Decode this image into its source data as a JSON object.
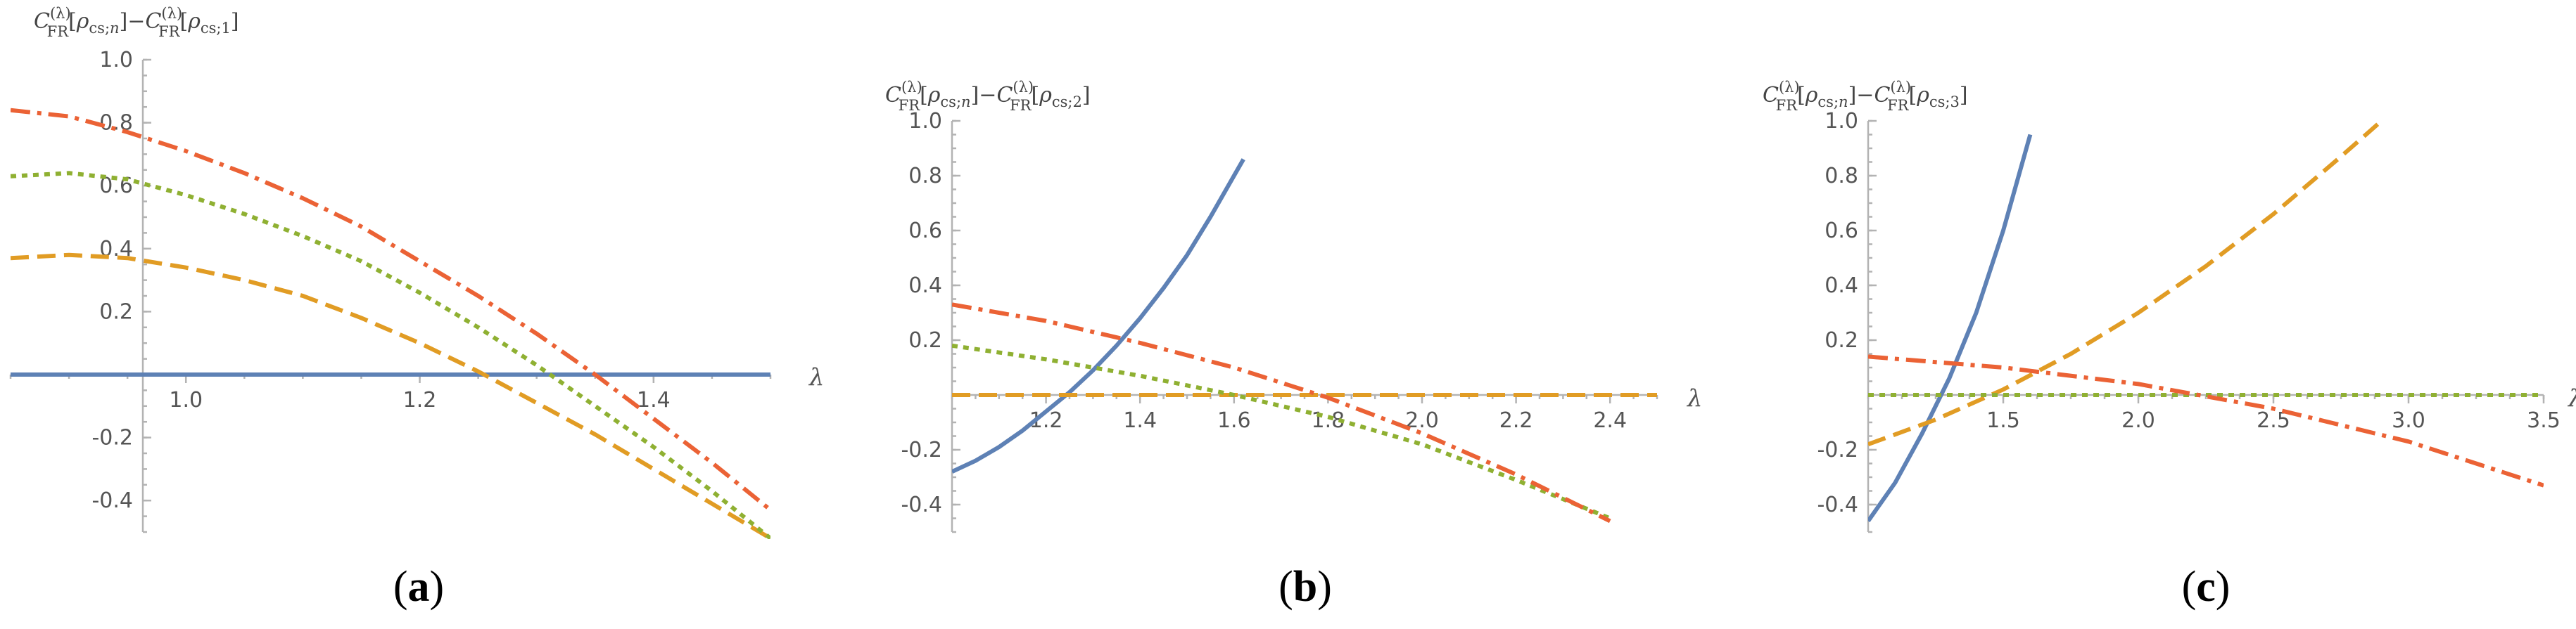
{
  "chart_data": [
    {
      "type": "line",
      "panel_label": "a",
      "ylabel": {
        "C": "C",
        "sub": "FR",
        "sup": "(λ)",
        "arg1": "ρ",
        "arg1sub": "cs;",
        "arg1subit": "n",
        "arg2": "ρ",
        "arg2sub": "cs;1"
      },
      "xlabel": "λ",
      "xlim": [
        0.85,
        1.5
      ],
      "ylim": [
        -0.5,
        1.0
      ],
      "xticks": [
        "1.0",
        "1.2",
        "1.4"
      ],
      "yticks": [
        "-0.4",
        "-0.2",
        "0.2",
        "0.4",
        "0.6",
        "0.8",
        "1.0"
      ],
      "series": [
        {
          "color": "#5e81b5",
          "dash": "solid",
          "x": [
            0.85,
            1.5
          ],
          "y": [
            0.0,
            0.0
          ]
        },
        {
          "color": "#e19c24",
          "dash": "dashed",
          "x": [
            0.85,
            0.9,
            0.95,
            1.0,
            1.05,
            1.1,
            1.15,
            1.2,
            1.25,
            1.3,
            1.35,
            1.4,
            1.45,
            1.5
          ],
          "y": [
            0.37,
            0.38,
            0.37,
            0.34,
            0.3,
            0.25,
            0.18,
            0.1,
            0.01,
            -0.09,
            -0.19,
            -0.3,
            -0.41,
            -0.52
          ]
        },
        {
          "color": "#8fb032",
          "dash": "dotted",
          "x": [
            0.85,
            0.9,
            0.95,
            1.0,
            1.05,
            1.1,
            1.15,
            1.2,
            1.25,
            1.3,
            1.35,
            1.4,
            1.45,
            1.5
          ],
          "y": [
            0.63,
            0.64,
            0.62,
            0.57,
            0.51,
            0.44,
            0.36,
            0.26,
            0.15,
            0.03,
            -0.1,
            -0.23,
            -0.37,
            -0.52
          ]
        },
        {
          "color": "#eb6235",
          "dash": "dashdot",
          "x": [
            0.85,
            0.9,
            0.95,
            1.0,
            1.05,
            1.1,
            1.15,
            1.2,
            1.25,
            1.3,
            1.35,
            1.4,
            1.45,
            1.5
          ],
          "y": [
            0.84,
            0.82,
            0.77,
            0.71,
            0.64,
            0.56,
            0.47,
            0.36,
            0.25,
            0.13,
            0.0,
            -0.14,
            -0.28,
            -0.43
          ]
        }
      ]
    },
    {
      "type": "line",
      "panel_label": "b",
      "ylabel": {
        "C": "C",
        "sub": "FR",
        "sup": "(λ)",
        "arg1": "ρ",
        "arg1sub": "cs;",
        "arg1subit": "n",
        "arg2": "ρ",
        "arg2sub": "cs;2"
      },
      "xlabel": "λ",
      "xlim": [
        1.0,
        2.5
      ],
      "ylim": [
        -0.5,
        1.0
      ],
      "xticks": [
        "1.2",
        "1.4",
        "1.6",
        "1.8",
        "2.0",
        "2.2",
        "2.4"
      ],
      "yticks": [
        "-0.4",
        "-0.2",
        "0.2",
        "0.4",
        "0.6",
        "0.8",
        "1.0"
      ],
      "series": [
        {
          "color": "#5e81b5",
          "dash": "solid",
          "x": [
            1.0,
            1.05,
            1.1,
            1.15,
            1.2,
            1.25,
            1.3,
            1.35,
            1.4,
            1.45,
            1.5,
            1.55,
            1.6,
            1.62
          ],
          "y": [
            -0.28,
            -0.24,
            -0.19,
            -0.13,
            -0.06,
            0.01,
            0.09,
            0.18,
            0.28,
            0.39,
            0.51,
            0.65,
            0.8,
            0.86
          ]
        },
        {
          "color": "#e19c24",
          "dash": "dashed",
          "x": [
            1.0,
            2.5
          ],
          "y": [
            0.0,
            0.0
          ]
        },
        {
          "color": "#8fb032",
          "dash": "dotted",
          "x": [
            1.0,
            1.2,
            1.4,
            1.6,
            1.8,
            2.0,
            2.2,
            2.4
          ],
          "y": [
            0.18,
            0.13,
            0.07,
            0.0,
            -0.08,
            -0.18,
            -0.31,
            -0.45
          ]
        },
        {
          "color": "#eb6235",
          "dash": "dashdot",
          "x": [
            1.0,
            1.2,
            1.4,
            1.6,
            1.8,
            2.0,
            2.2,
            2.4
          ],
          "y": [
            0.33,
            0.27,
            0.19,
            0.1,
            -0.01,
            -0.14,
            -0.29,
            -0.46
          ]
        }
      ]
    },
    {
      "type": "line",
      "panel_label": "c",
      "ylabel": {
        "C": "C",
        "sub": "FR",
        "sup": "(λ)",
        "arg1": "ρ",
        "arg1sub": "cs;",
        "arg1subit": "n",
        "arg2": "ρ",
        "arg2sub": "cs;3"
      },
      "xlabel": "λ",
      "xlim": [
        1.0,
        3.5
      ],
      "ylim": [
        -0.5,
        1.0
      ],
      "xticks": [
        "1.5",
        "2.0",
        "2.5",
        "3.0",
        "3.5"
      ],
      "yticks": [
        "-0.4",
        "-0.2",
        "0.2",
        "0.4",
        "0.6",
        "0.8",
        "1.0"
      ],
      "series": [
        {
          "color": "#5e81b5",
          "dash": "solid",
          "x": [
            1.0,
            1.1,
            1.2,
            1.3,
            1.4,
            1.5,
            1.6
          ],
          "y": [
            -0.46,
            -0.32,
            -0.14,
            0.06,
            0.3,
            0.6,
            0.95
          ]
        },
        {
          "color": "#e19c24",
          "dash": "dashed",
          "x": [
            1.0,
            1.25,
            1.5,
            1.75,
            2.0,
            2.25,
            2.5,
            2.75,
            2.9
          ],
          "y": [
            -0.18,
            -0.09,
            0.02,
            0.15,
            0.3,
            0.47,
            0.66,
            0.87,
            1.0
          ]
        },
        {
          "color": "#8fb032",
          "dash": "dotted",
          "x": [
            1.0,
            3.5
          ],
          "y": [
            0.0,
            0.0
          ]
        },
        {
          "color": "#eb6235",
          "dash": "dashdot",
          "x": [
            1.0,
            1.5,
            2.0,
            2.5,
            3.0,
            3.5
          ],
          "y": [
            0.14,
            0.1,
            0.04,
            -0.05,
            -0.17,
            -0.33
          ]
        }
      ]
    }
  ]
}
